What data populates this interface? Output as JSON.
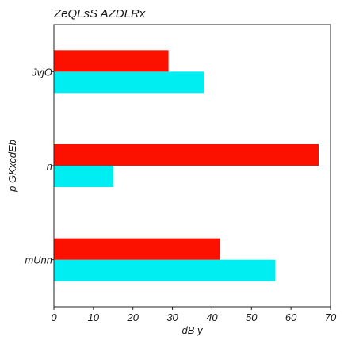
{
  "chart_data": {
    "type": "bar",
    "orientation": "horizontal",
    "title": "ZeQLsS AZDLRx",
    "xlabel": "dB y",
    "ylabel": "p GKxcdEb",
    "categories": [
      "mUnn",
      "n",
      "JvjO"
    ],
    "series": [
      {
        "color": "#00eef2",
        "values": [
          56,
          15,
          38
        ]
      },
      {
        "color": "#fc1000",
        "values": [
          42,
          67,
          29
        ]
      }
    ],
    "xlim": [
      0,
      70
    ],
    "xticks": [
      0,
      10,
      20,
      30,
      40,
      50,
      60,
      70
    ],
    "grid": false,
    "legend": "none"
  }
}
